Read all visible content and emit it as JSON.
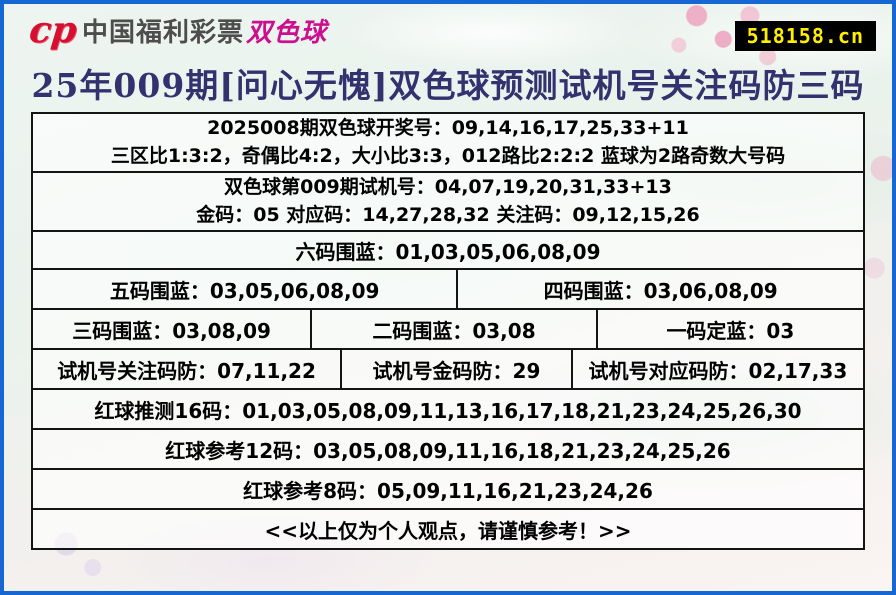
{
  "header": {
    "brand_name": "中国福利彩票",
    "brand_product": "双色球",
    "logo_glyph": "cp",
    "site_badge": "518158.cn"
  },
  "title": "25年009期[问心无愧]双色球预测试机号关注码防三码",
  "board": {
    "draw_info": {
      "line1": "2025008期双色球开奖号：09,14,16,17,25,33+11",
      "line2": "三区比1:3:2，奇偶比4:2，大小比3:3，012路比2:2:2 蓝球为2路奇数大号码"
    },
    "test_info": {
      "line1": "双色球第009期试机号：04,07,19,20,31,33+13",
      "line2": "金码：05 对应码：14,27,28,32 关注码：09,12,15,26"
    },
    "blue6": "六码围蓝：01,03,05,06,08,09",
    "blue5": "五码围蓝：03,05,06,08,09",
    "blue4": "四码围蓝：03,06,08,09",
    "blue3": "三码围蓝：03,08,09",
    "blue2": "二码围蓝：03,08",
    "blue1": "一码定蓝：03",
    "guard_watch": "试机号关注码防：07,11,22",
    "guard_gold": "试机号金码防：29",
    "guard_match": "试机号对应码防：02,17,33",
    "red16": "红球推测16码：01,03,05,08,09,11,13,16,17,18,21,23,24,25,26,30",
    "red12": "红球参考12码：03,05,08,09,11,16,18,21,23,24,25,26",
    "red8": "红球参考8码：05,09,11,16,21,23,24,26",
    "disclaimer": "<<以上仅为个人观点，请谨慎参考！>>"
  },
  "colors": {
    "frame_blue": "#1767d2",
    "badge_bg": "#000000",
    "badge_text": "#ffee00",
    "brand_red": "#d50f2f",
    "brand_magenta": "#cc0f8e",
    "title_navy": "#32326e",
    "table_border": "#141414"
  }
}
